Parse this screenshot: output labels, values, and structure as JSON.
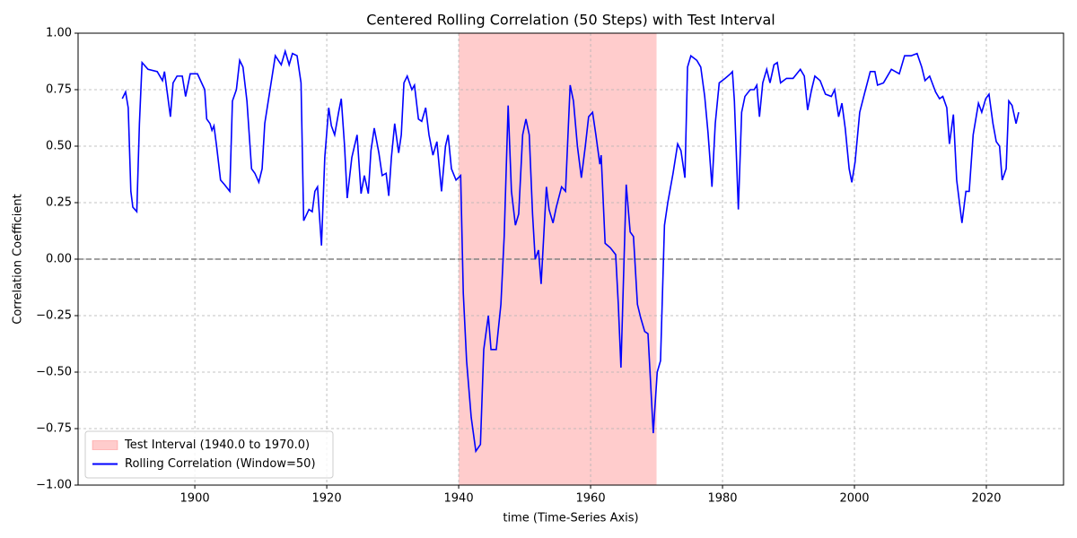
{
  "chart_data": {
    "type": "line",
    "title": "Centered Rolling Correlation (50 Steps) with Test Interval",
    "xlabel": "time (Time-Series Axis)",
    "ylabel": "Correlation Coefficient",
    "xlim": [
      1882.3,
      2031.7
    ],
    "ylim": [
      -1,
      1
    ],
    "xticks": [
      1900,
      1920,
      1940,
      1960,
      1980,
      2000,
      2020
    ],
    "yticks": [
      {
        "value": 1,
        "label": "1.00"
      },
      {
        "value": 0.75,
        "label": "0.75"
      },
      {
        "value": 0.5,
        "label": "0.50"
      },
      {
        "value": 0.25,
        "label": "0.25"
      },
      {
        "value": 0,
        "label": "0.00"
      },
      {
        "value": -0.25,
        "label": "−0.25"
      },
      {
        "value": -0.5,
        "label": "−0.50"
      },
      {
        "value": -0.75,
        "label": "−0.75"
      },
      {
        "value": -1,
        "label": "−1.00"
      }
    ],
    "grid": true,
    "legend": "lower left",
    "spans": [
      {
        "name": "Test Interval (1940.0 to 1970.0)",
        "start": 1940,
        "end": 1970,
        "color": "#ff0000",
        "opacity": 0.2
      }
    ],
    "hlines": [
      {
        "value": 0,
        "color": "#808080",
        "style": "dashed"
      }
    ],
    "x": [
      1889.0,
      1889.5,
      1889.9,
      1890.3,
      1890.6,
      1891.2,
      1891.6,
      1892.0,
      1892.9,
      1894.3,
      1895.1,
      1895.4,
      1896.3,
      1896.7,
      1897.3,
      1898.1,
      1898.6,
      1899.3,
      1900.4,
      1901.5,
      1901.8,
      1902.3,
      1902.6,
      1902.9,
      1903.3,
      1903.9,
      1904.5,
      1905.3,
      1905.7,
      1906.3,
      1906.8,
      1907.3,
      1907.9,
      1908.6,
      1909.1,
      1909.7,
      1910.2,
      1910.6,
      1911.4,
      1912.2,
      1913.1,
      1913.7,
      1914.3,
      1914.8,
      1915.5,
      1916.1,
      1916.5,
      1917.3,
      1917.8,
      1918.2,
      1918.6,
      1919.2,
      1919.7,
      1920.3,
      1920.7,
      1921.2,
      1921.8,
      1922.2,
      1922.7,
      1923.1,
      1923.8,
      1924.6,
      1925.2,
      1925.7,
      1926.3,
      1926.7,
      1927.2,
      1927.9,
      1928.4,
      1929.0,
      1929.4,
      1929.8,
      1930.3,
      1930.9,
      1931.3,
      1931.7,
      1932.2,
      1932.9,
      1933.3,
      1933.9,
      1934.4,
      1935.0,
      1935.5,
      1936.1,
      1936.7,
      1937.4,
      1938.0,
      1938.4,
      1938.9,
      1939.6,
      1940.3,
      1940.7,
      1941.2,
      1941.9,
      1942.6,
      1943.3,
      1943.8,
      1944.5,
      1944.9,
      1945.7,
      1946.4,
      1946.9,
      1947.5,
      1948.0,
      1948.6,
      1949.1,
      1949.7,
      1950.2,
      1950.7,
      1951.2,
      1951.6,
      1952.1,
      1952.5,
      1953.3,
      1953.7,
      1954.3,
      1954.8,
      1955.6,
      1956.2,
      1956.9,
      1957.4,
      1958.0,
      1958.6,
      1959.2,
      1959.7,
      1960.3,
      1960.8,
      1961.4,
      1961.6,
      1962.2,
      1963.0,
      1963.8,
      1964.2,
      1964.6,
      1965.4,
      1966.0,
      1966.5,
      1967.1,
      1967.6,
      1968.2,
      1968.7,
      1969.5,
      1970.1,
      1970.6,
      1971.2,
      1971.7,
      1972.5,
      1973.2,
      1973.7,
      1974.3,
      1974.7,
      1975.2,
      1976.1,
      1976.7,
      1977.3,
      1977.8,
      1978.4,
      1978.9,
      1979.5,
      1980.4,
      1981.2,
      1981.5,
      1981.8,
      1982.4,
      1982.9,
      1983.4,
      1984.2,
      1984.8,
      1985.2,
      1985.6,
      1986.1,
      1986.7,
      1987.2,
      1987.8,
      1988.3,
      1988.8,
      1989.7,
      1990.7,
      1991.8,
      1992.4,
      1992.9,
      1993.5,
      1994.0,
      1994.8,
      1995.6,
      1996.5,
      1997.0,
      1997.6,
      1998.1,
      1998.6,
      1999.2,
      1999.6,
      2000.1,
      2000.8,
      2001.5,
      2002.4,
      2003.1,
      2003.5,
      2004.4,
      2005.6,
      2006.8,
      2007.6,
      2008.6,
      2009.5,
      2010.2,
      2010.7,
      2011.4,
      2012.3,
      2012.9,
      2013.4,
      2014.0,
      2014.4,
      2015.0,
      2015.5,
      2016.3,
      2016.9,
      2017.4,
      2018.0,
      2018.8,
      2019.3,
      2019.9,
      2020.4,
      2021.0,
      2021.5,
      2022.0,
      2022.4,
      2023.0,
      2023.4,
      2023.9,
      2024.5,
      2024.9
    ],
    "series": [
      {
        "name": "Rolling Correlation (Window=50)",
        "color": "#0000ff",
        "values": [
          0.71,
          0.74,
          0.67,
          0.3,
          0.23,
          0.21,
          0.6,
          0.87,
          0.84,
          0.83,
          0.79,
          0.83,
          0.63,
          0.78,
          0.81,
          0.81,
          0.72,
          0.82,
          0.82,
          0.75,
          0.62,
          0.6,
          0.57,
          0.59,
          0.5,
          0.35,
          0.33,
          0.3,
          0.7,
          0.75,
          0.88,
          0.85,
          0.7,
          0.4,
          0.38,
          0.34,
          0.4,
          0.6,
          0.75,
          0.9,
          0.86,
          0.92,
          0.86,
          0.91,
          0.9,
          0.78,
          0.17,
          0.22,
          0.21,
          0.3,
          0.32,
          0.06,
          0.45,
          0.67,
          0.59,
          0.55,
          0.65,
          0.71,
          0.5,
          0.27,
          0.45,
          0.55,
          0.29,
          0.37,
          0.29,
          0.48,
          0.58,
          0.47,
          0.37,
          0.38,
          0.28,
          0.45,
          0.6,
          0.47,
          0.55,
          0.78,
          0.81,
          0.75,
          0.77,
          0.62,
          0.61,
          0.67,
          0.55,
          0.46,
          0.52,
          0.3,
          0.5,
          0.55,
          0.4,
          0.35,
          0.37,
          -0.15,
          -0.45,
          -0.7,
          -0.85,
          -0.82,
          -0.4,
          -0.25,
          -0.4,
          -0.4,
          -0.2,
          0.1,
          0.68,
          0.3,
          0.15,
          0.2,
          0.55,
          0.62,
          0.55,
          0.2,
          0.0,
          0.04,
          -0.11,
          0.32,
          0.22,
          0.16,
          0.23,
          0.32,
          0.3,
          0.77,
          0.7,
          0.5,
          0.36,
          0.5,
          0.63,
          0.65,
          0.55,
          0.42,
          0.46,
          0.07,
          0.05,
          0.02,
          -0.2,
          -0.48,
          0.33,
          0.12,
          0.1,
          -0.2,
          -0.26,
          -0.32,
          -0.33,
          -0.77,
          -0.5,
          -0.45,
          0.15,
          0.25,
          0.38,
          0.51,
          0.48,
          0.36,
          0.85,
          0.9,
          0.88,
          0.85,
          0.72,
          0.56,
          0.32,
          0.6,
          0.78,
          0.8,
          0.82,
          0.83,
          0.7,
          0.22,
          0.65,
          0.72,
          0.75,
          0.75,
          0.77,
          0.63,
          0.78,
          0.84,
          0.78,
          0.86,
          0.87,
          0.78,
          0.8,
          0.8,
          0.84,
          0.81,
          0.66,
          0.75,
          0.81,
          0.79,
          0.73,
          0.72,
          0.75,
          0.63,
          0.69,
          0.58,
          0.4,
          0.34,
          0.43,
          0.65,
          0.73,
          0.83,
          0.83,
          0.77,
          0.78,
          0.84,
          0.82,
          0.9,
          0.9,
          0.91,
          0.85,
          0.79,
          0.81,
          0.74,
          0.71,
          0.72,
          0.67,
          0.51,
          0.64,
          0.35,
          0.16,
          0.3,
          0.3,
          0.55,
          0.69,
          0.65,
          0.71,
          0.73,
          0.6,
          0.52,
          0.5,
          0.35,
          0.4,
          0.7,
          0.68,
          0.6,
          0.65
        ]
      }
    ]
  }
}
